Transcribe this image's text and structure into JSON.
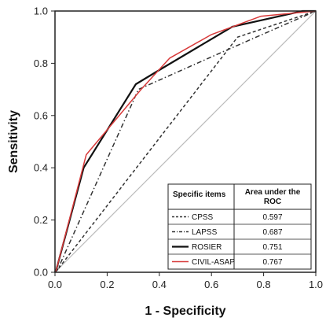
{
  "chart_data": {
    "type": "line",
    "xlabel": "1 - Specificity",
    "ylabel": "Sensitivity",
    "xlim": [
      0,
      1
    ],
    "ylim": [
      0,
      1
    ],
    "xticks": [
      "0.0",
      "0.2",
      "0.4",
      "0.6",
      "0.8",
      "1.0"
    ],
    "yticks": [
      "0.0",
      "0.2",
      "0.4",
      "0.6",
      "0.8",
      "1.0"
    ],
    "grid": false,
    "legend_position": "bottom-right",
    "legend_headers": [
      "Specific items",
      "Area under the",
      "ROC"
    ],
    "reference_line": {
      "x": [
        0,
        1
      ],
      "y": [
        0,
        1
      ],
      "color": "#bbbbbb"
    },
    "series": [
      {
        "name": "CPSS",
        "auc": "0.597",
        "color": "#333333",
        "dash": "dashed",
        "x": [
          0,
          0.01,
          0.7,
          1.0
        ],
        "y": [
          0,
          0.01,
          0.9,
          1.0
        ]
      },
      {
        "name": "LAPSS",
        "auc": "0.687",
        "color": "#333333",
        "dash": "dashdot",
        "x": [
          0,
          0.01,
          0.32,
          0.68,
          1.0
        ],
        "y": [
          0,
          0.01,
          0.7,
          0.86,
          1.0
        ]
      },
      {
        "name": "ROSIER",
        "auc": "0.751",
        "color": "#111111",
        "dash": "solid",
        "x": [
          0,
          0.005,
          0.11,
          0.31,
          0.41,
          0.68,
          0.95,
          1.0
        ],
        "y": [
          0,
          0.01,
          0.4,
          0.72,
          0.78,
          0.94,
          1.0,
          1.0
        ],
        "thick": true
      },
      {
        "name": "CIVIL-ASAP",
        "auc": "0.767",
        "color": "#d83a3a",
        "dash": "solid",
        "x": [
          0,
          0.005,
          0.12,
          0.33,
          0.44,
          0.6,
          0.79,
          1.0
        ],
        "y": [
          0,
          0.01,
          0.45,
          0.7,
          0.82,
          0.91,
          0.98,
          1.0
        ]
      }
    ]
  }
}
